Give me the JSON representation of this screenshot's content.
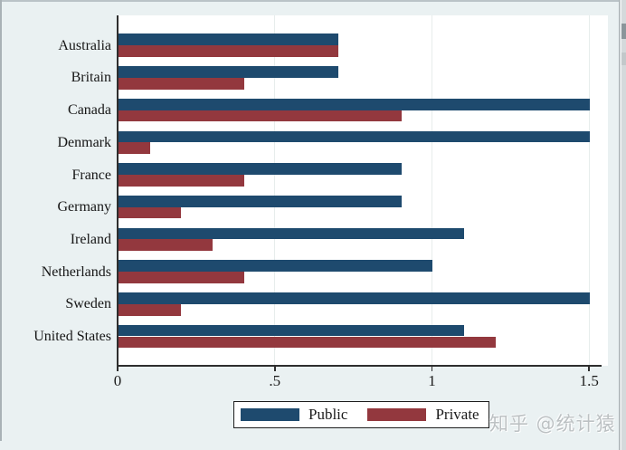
{
  "chart_data": {
    "type": "bar",
    "orientation": "horizontal",
    "title": "",
    "xlabel": "",
    "ylabel": "",
    "xlim": [
      0,
      1.5
    ],
    "xticks": [
      {
        "value": 0,
        "label": "0"
      },
      {
        "value": 0.5,
        "label": ".5"
      },
      {
        "value": 1,
        "label": "1"
      },
      {
        "value": 1.5,
        "label": "1.5"
      }
    ],
    "grid": "vertical gridlines at x ticks",
    "legend_position": "bottom center",
    "categories": [
      "Australia",
      "Britain",
      "Canada",
      "Denmark",
      "France",
      "Germany",
      "Ireland",
      "Netherlands",
      "Sweden",
      "United States"
    ],
    "series": [
      {
        "name": "Public",
        "color": "#1e4a6e",
        "values": [
          0.7,
          0.7,
          1.5,
          1.5,
          0.9,
          0.9,
          1.1,
          1.0,
          1.5,
          1.1
        ]
      },
      {
        "name": "Private",
        "color": "#93383e",
        "values": [
          0.7,
          0.4,
          0.9,
          0.1,
          0.4,
          0.2,
          0.3,
          0.4,
          0.2,
          1.2
        ]
      }
    ]
  },
  "legend": {
    "items": [
      {
        "label": "Public",
        "color": "#1e4a6e"
      },
      {
        "label": "Private",
        "color": "#93383e"
      }
    ]
  },
  "watermark": {
    "text": "知乎 @统计猿"
  },
  "colors": {
    "canvas_background": "#eaf1f2",
    "plot_background": "#ffffff",
    "gridline": "#e7edec",
    "axis": "#2e2e2e",
    "text": "#1c1c1c",
    "public_bar": "#1e4a6e",
    "private_bar": "#93383e",
    "watermark_text": "#bcc1c3"
  }
}
